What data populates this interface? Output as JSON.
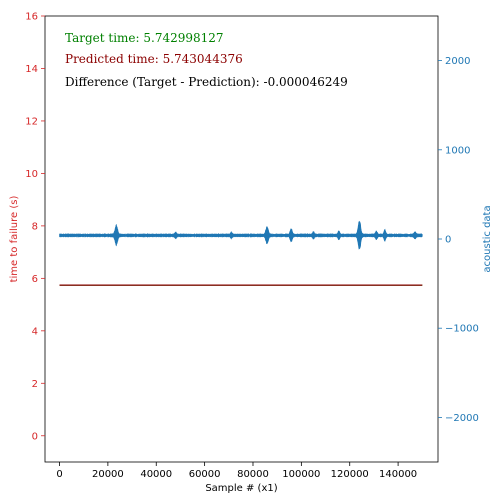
{
  "chart_data": {
    "type": "line",
    "xlabel": "Sample # (x1)",
    "ylabel_left": "time to failure (s)",
    "ylabel_right": "acoustic data",
    "xlim": [
      -6000,
      156500
    ],
    "ylim_left": [
      -1,
      16
    ],
    "ylim_right": [
      -2500,
      2500
    ],
    "x_ticks": [
      0,
      20000,
      40000,
      60000,
      80000,
      100000,
      120000,
      140000
    ],
    "y_left_ticks": [
      0,
      2,
      4,
      6,
      8,
      10,
      12,
      14,
      16
    ],
    "y_right_ticks": [
      -2000,
      -1000,
      0,
      1000,
      2000
    ],
    "y_right_tick_labels": [
      "−2000",
      "−1000",
      "0",
      "1000",
      "2000"
    ],
    "series": [
      {
        "name": "Target time",
        "axis": "left",
        "color": "#008000",
        "x": [
          0,
          150000
        ],
        "y": [
          5.742998127,
          5.742998127
        ]
      },
      {
        "name": "Predicted time",
        "axis": "left",
        "color": "#8b0000",
        "x": [
          0,
          150000
        ],
        "y": [
          5.743044376,
          5.743044376
        ]
      },
      {
        "name": "acoustic data",
        "axis": "right",
        "color": "#1f77b4",
        "baseline": 40,
        "noise_amplitude": 18,
        "bursts": [
          {
            "x": 23500,
            "amplitude": 110,
            "width": 700
          },
          {
            "x": 48000,
            "amplitude": 25,
            "width": 500
          },
          {
            "x": 71000,
            "amplitude": 25,
            "width": 500
          },
          {
            "x": 85800,
            "amplitude": 95,
            "width": 700
          },
          {
            "x": 95800,
            "amplitude": 65,
            "width": 600
          },
          {
            "x": 105000,
            "amplitude": 30,
            "width": 500
          },
          {
            "x": 115500,
            "amplitude": 40,
            "width": 500
          },
          {
            "x": 124000,
            "amplitude": 170,
            "width": 700
          },
          {
            "x": 131000,
            "amplitude": 40,
            "width": 500
          },
          {
            "x": 134500,
            "amplitude": 55,
            "width": 500
          },
          {
            "x": 147000,
            "amplitude": 30,
            "width": 500
          }
        ]
      }
    ],
    "annotations": [
      {
        "text": "Target time: 5.742998127",
        "color": "#008000"
      },
      {
        "text": "Predicted time: 5.743044376",
        "color": "#8b0000"
      },
      {
        "text": "Difference (Target - Prediction): -0.000046249",
        "color": "#000000"
      }
    ],
    "colors": {
      "left_axis": "#d62728",
      "right_axis": "#1f77b4"
    }
  }
}
